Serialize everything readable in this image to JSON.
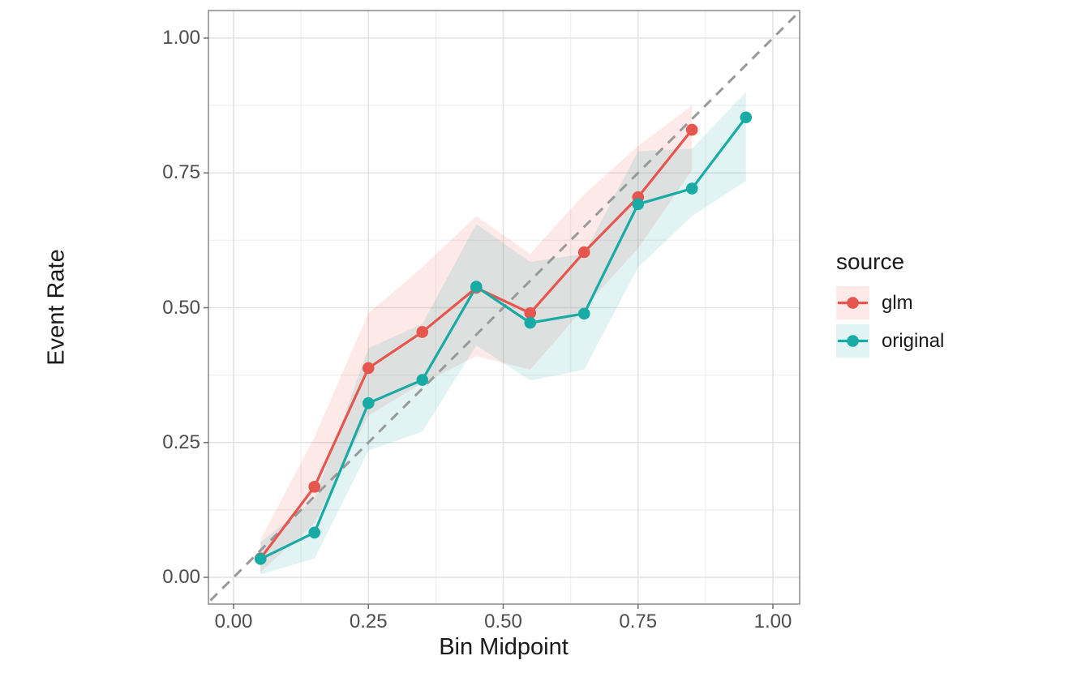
{
  "figure": {
    "background": "#FFFFFF",
    "panel_border_color": "#8A8A8A",
    "major_grid_color": "#E3E3E3",
    "minor_grid_color": "#F1F1F1",
    "tick_mark_color": "#6E6E6E",
    "axis_text_color": "#4D4D4D"
  },
  "chart_data": {
    "type": "line",
    "title": "",
    "xlabel": "Bin Midpoint",
    "ylabel": "Event Rate",
    "xlim": [
      -0.05,
      1.05
    ],
    "ylim": [
      -0.05,
      1.05
    ],
    "grid": true,
    "x_ticks": {
      "values": [
        0,
        0.25,
        0.5,
        0.75,
        1.0
      ],
      "labels": [
        "0.00",
        "0.25",
        "0.50",
        "0.75",
        "1.00"
      ]
    },
    "y_ticks": {
      "values": [
        0,
        0.25,
        0.5,
        0.75,
        1.0
      ],
      "labels": [
        "0.00",
        "0.25",
        "0.50",
        "0.75",
        "1.00"
      ]
    },
    "minor_tick_values": [
      0.125,
      0.375,
      0.625,
      0.875
    ],
    "reference_line": {
      "kind": "identity-diagonal",
      "style": "dashed",
      "color": "#999999"
    },
    "legend": {
      "title": "source",
      "position": "right",
      "entries": [
        "glm",
        "original"
      ]
    },
    "series": [
      {
        "name": "glm",
        "color": "#E6554E",
        "ribbon_opacity": 0.13,
        "x": [
          0.05,
          0.15,
          0.25,
          0.35,
          0.45,
          0.55,
          0.65,
          0.75,
          0.85
        ],
        "y": [
          0.035,
          0.168,
          0.388,
          0.455,
          0.537,
          0.49,
          0.603,
          0.705,
          0.83
        ],
        "ymin": [
          0.01,
          0.1,
          0.3,
          0.36,
          0.41,
          0.385,
          0.5,
          0.61,
          0.755
        ],
        "ymax": [
          0.07,
          0.26,
          0.49,
          0.575,
          0.67,
          0.6,
          0.71,
          0.8,
          0.875
        ]
      },
      {
        "name": "original",
        "color": "#18ABA5",
        "ribbon_opacity": 0.13,
        "x": [
          0.05,
          0.15,
          0.25,
          0.35,
          0.45,
          0.55,
          0.65,
          0.75,
          0.85,
          0.95
        ],
        "y": [
          0.034,
          0.083,
          0.323,
          0.366,
          0.539,
          0.472,
          0.489,
          0.692,
          0.721,
          0.853
        ],
        "ymin": [
          0.005,
          0.035,
          0.235,
          0.27,
          0.43,
          0.365,
          0.385,
          0.575,
          0.67,
          0.735
        ],
        "ymax": [
          0.065,
          0.145,
          0.425,
          0.47,
          0.655,
          0.585,
          0.6,
          0.79,
          0.795,
          0.9
        ]
      }
    ]
  }
}
